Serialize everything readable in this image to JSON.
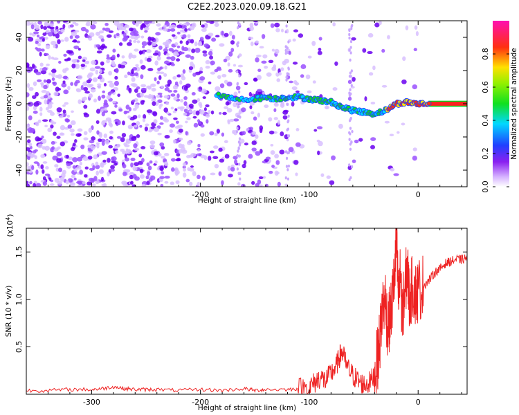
{
  "title": "C2E2.2023.020.09.18.G21",
  "colors": {
    "snr_line": "#ee2222",
    "signal_track": "#ff2020",
    "scatter_base": "#6a00f0",
    "frame": "#000000"
  },
  "chart_data": [
    {
      "type": "heatmap",
      "title": "C2E2.2023.020.09.18.G21",
      "xlabel": "Height of straight line (km)",
      "ylabel": "Frequency (Hz)",
      "xlim": [
        -360,
        45
      ],
      "ylim": [
        -50,
        50
      ],
      "xticks": [
        -300,
        -200,
        -100,
        0
      ],
      "xtick_labels": [
        "-300",
        "-200",
        "-100",
        "0"
      ],
      "yticks": [
        -40,
        -20,
        0,
        20,
        40
      ],
      "ytick_labels": [
        "-40",
        "-20",
        "0",
        "20",
        "40"
      ],
      "colorbar": {
        "label": "Normalized spectral amplitude",
        "range": [
          0,
          1
        ],
        "ticks": [
          0.0,
          0.2,
          0.4,
          0.6,
          0.8
        ],
        "tick_labels": [
          "0.0",
          "0.2",
          "0.4",
          "0.6",
          "0.8"
        ],
        "colormap": "rainbow (white-violet-blue-cyan-green-yellow-red-magenta)"
      },
      "signal_track": {
        "x": [
          -185,
          -170,
          -150,
          -140,
          -130,
          -120,
          -110,
          -100,
          -90,
          -80,
          -70,
          -60,
          -50,
          -40,
          -30,
          -20,
          -10,
          0,
          10,
          45
        ],
        "y": [
          5,
          3,
          3,
          4,
          3,
          4,
          4,
          3,
          2,
          1,
          -2,
          -4,
          -5,
          -6,
          -4,
          0,
          1,
          0,
          0,
          0
        ]
      },
      "grid": false
    },
    {
      "type": "line",
      "xlabel": "Height of straight line (km)",
      "ylabel": "SNR (10 * v/v)",
      "y_multiplier": "(x10",
      "y_multiplier_exp": "4",
      "y_multiplier_close": ")",
      "xlim": [
        -360,
        45
      ],
      "ylim": [
        0,
        1.75
      ],
      "xticks": [
        -300,
        -200,
        -100,
        0
      ],
      "xtick_labels": [
        "-300",
        "-200",
        "-100",
        "0"
      ],
      "yticks": [
        0.5,
        1.0,
        1.5
      ],
      "ytick_labels": [
        "0.5",
        "1.0",
        "1.5"
      ],
      "series": [
        {
          "x": [
            -360,
            -340,
            -320,
            -300,
            -290,
            -280,
            -270,
            -260,
            -250,
            -240,
            -220,
            -200,
            -180,
            -160,
            -150,
            -140,
            -120,
            -110,
            -100,
            -95,
            -90,
            -85,
            -80,
            -75,
            -72,
            -70,
            -65,
            -60,
            -55,
            -50,
            -45,
            -40,
            -37,
            -35,
            -33,
            -30,
            -28,
            -25,
            -22,
            -20,
            -18,
            -16,
            -15,
            -12,
            -10,
            -8,
            -5,
            -2,
            0,
            5,
            10,
            15,
            20,
            25,
            30,
            35,
            40,
            45
          ],
          "y": [
            0.04,
            0.04,
            0.05,
            0.05,
            0.06,
            0.08,
            0.06,
            0.05,
            0.05,
            0.05,
            0.04,
            0.05,
            0.04,
            0.06,
            0.04,
            0.05,
            0.05,
            0.06,
            0.08,
            0.12,
            0.18,
            0.14,
            0.22,
            0.3,
            0.4,
            0.45,
            0.28,
            0.2,
            0.14,
            0.1,
            0.12,
            0.2,
            0.4,
            0.6,
            0.9,
            1.0,
            0.7,
            0.85,
            1.2,
            1.6,
            1.0,
            1.3,
            0.8,
            1.1,
            1.35,
            1.0,
            1.15,
            1.05,
            1.1,
            1.15,
            1.2,
            1.28,
            1.32,
            1.38,
            1.4,
            1.42,
            1.42,
            1.44
          ]
        }
      ],
      "grid": false
    }
  ]
}
